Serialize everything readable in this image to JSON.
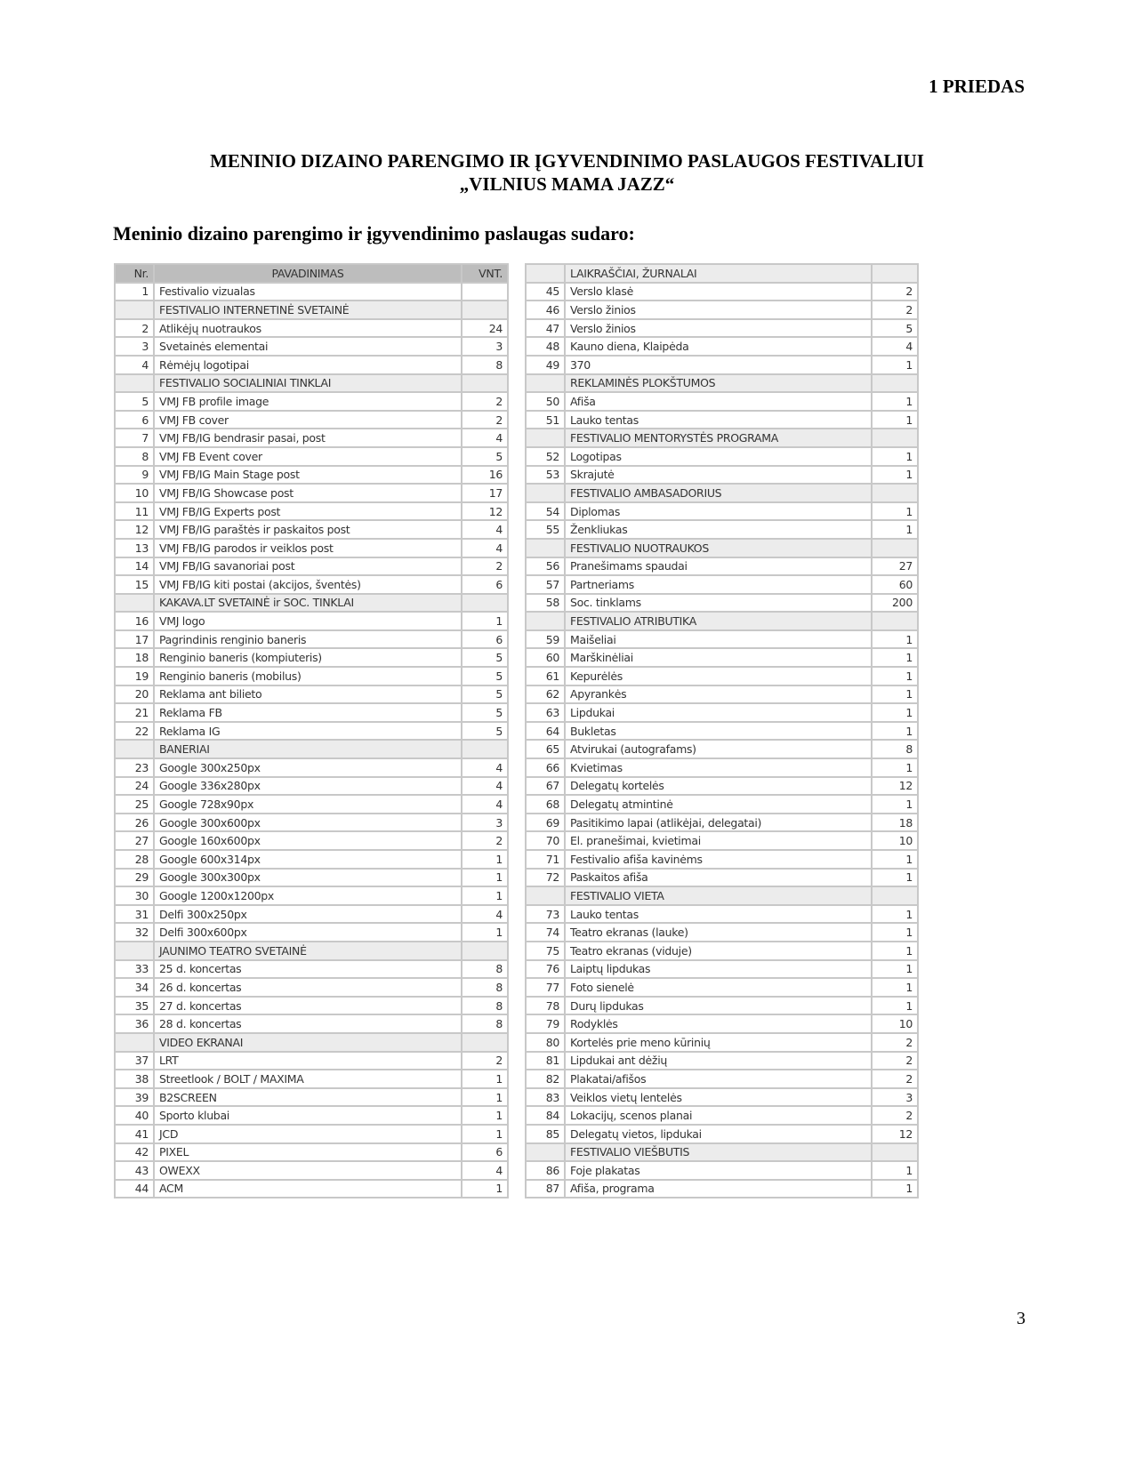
{
  "annex_label": "1 PRIEDAS",
  "title_line1": "MENINIO DIZAINO PARENGIMO IR ĮGYVENDINIMO PASLAUGOS FESTIVALIUI",
  "title_line2": "„VILNIUS MAMA JAZZ“",
  "subtitle": "Meninio dizaino parengimo ir įgyvendinimo paslaugas sudaro:",
  "page_number": "3",
  "colors": {
    "header_bg": "#bdbdbd",
    "section_bg": "#ececec",
    "border": "#c8c8c8"
  },
  "table_left": [
    {
      "type": "head",
      "nr": "Nr.",
      "name": "PAVADINIMAS",
      "vnt": "VNT."
    },
    {
      "nr": "1",
      "name": "Festivalio vizualas",
      "vnt": ""
    },
    {
      "type": "section",
      "nr": "",
      "name": "FESTIVALIO INTERNETINĖ SVETAINĖ",
      "vnt": ""
    },
    {
      "nr": "2",
      "name": "Atlikėjų nuotraukos",
      "vnt": "24"
    },
    {
      "nr": "3",
      "name": "Svetainės elementai",
      "vnt": "3"
    },
    {
      "nr": "4",
      "name": "Rėmėjų logotipai",
      "vnt": "8"
    },
    {
      "type": "section",
      "nr": "",
      "name": "FESTIVALIO SOCIALINIAI TINKLAI",
      "vnt": ""
    },
    {
      "nr": "5",
      "name": "VMJ FB profile image",
      "vnt": "2"
    },
    {
      "nr": "6",
      "name": "VMJ FB cover",
      "vnt": "2"
    },
    {
      "nr": "7",
      "name": "VMJ FB/IG bendrasir pasai, post",
      "vnt": "4"
    },
    {
      "nr": "8",
      "name": "VMJ FB Event cover",
      "vnt": "5"
    },
    {
      "nr": "9",
      "name": "VMJ FB/IG Main Stage post",
      "vnt": "16"
    },
    {
      "nr": "10",
      "name": "VMJ FB/IG Showcase post",
      "vnt": "17"
    },
    {
      "nr": "11",
      "name": "VMJ FB/IG Experts post",
      "vnt": "12"
    },
    {
      "nr": "12",
      "name": "VMJ FB/IG paraštės ir paskaitos post",
      "vnt": "4"
    },
    {
      "nr": "13",
      "name": "VMJ FB/IG parodos ir veiklos post",
      "vnt": "4"
    },
    {
      "nr": "14",
      "name": "VMJ FB/IG savanoriai post",
      "vnt": "2"
    },
    {
      "nr": "15",
      "name": "VMJ FB/IG kiti postai (akcijos, šventės)",
      "vnt": "6"
    },
    {
      "type": "section",
      "nr": "",
      "name": "KAKAVA.LT SVETAINĖ ir SOC. TINKLAI",
      "vnt": ""
    },
    {
      "nr": "16",
      "name": "VMJ logo",
      "vnt": "1"
    },
    {
      "nr": "17",
      "name": "Pagrindinis renginio baneris",
      "vnt": "6"
    },
    {
      "nr": "18",
      "name": "Renginio baneris (kompiuteris)",
      "vnt": "5"
    },
    {
      "nr": "19",
      "name": "Renginio baneris (mobilus)",
      "vnt": "5"
    },
    {
      "nr": "20",
      "name": "Reklama ant bilieto",
      "vnt": "5"
    },
    {
      "nr": "21",
      "name": "Reklama FB",
      "vnt": "5"
    },
    {
      "nr": "22",
      "name": "Reklama IG",
      "vnt": "5"
    },
    {
      "type": "section",
      "nr": "",
      "name": "BANERIAI",
      "vnt": ""
    },
    {
      "nr": "23",
      "name": "Google 300x250px",
      "vnt": "4"
    },
    {
      "nr": "24",
      "name": "Google 336x280px",
      "vnt": "4"
    },
    {
      "nr": "25",
      "name": "Google 728x90px",
      "vnt": "4"
    },
    {
      "nr": "26",
      "name": "Google 300x600px",
      "vnt": "3"
    },
    {
      "nr": "27",
      "name": "Google 160x600px",
      "vnt": "2"
    },
    {
      "nr": "28",
      "name": "Google 600x314px",
      "vnt": "1"
    },
    {
      "nr": "29",
      "name": "Google 300x300px",
      "vnt": "1"
    },
    {
      "nr": "30",
      "name": "Google 1200x1200px",
      "vnt": "1"
    },
    {
      "nr": "31",
      "name": "Delfi 300x250px",
      "vnt": "4"
    },
    {
      "nr": "32",
      "name": "Delfi 300x600px",
      "vnt": "1"
    },
    {
      "type": "section",
      "nr": "",
      "name": "JAUNIMO TEATRO SVETAINĖ",
      "vnt": ""
    },
    {
      "nr": "33",
      "name": "25 d. koncertas",
      "vnt": "8"
    },
    {
      "nr": "34",
      "name": "26 d. koncertas",
      "vnt": "8"
    },
    {
      "nr": "35",
      "name": "27 d. koncertas",
      "vnt": "8"
    },
    {
      "nr": "36",
      "name": "28 d. koncertas",
      "vnt": "8"
    },
    {
      "type": "section",
      "nr": "",
      "name": "VIDEO EKRANAI",
      "vnt": ""
    },
    {
      "nr": "37",
      "name": "LRT",
      "vnt": "2"
    },
    {
      "nr": "38",
      "name": "Streetlook / BOLT / MAXIMA",
      "vnt": "1"
    },
    {
      "nr": "39",
      "name": "B2SCREEN",
      "vnt": "1"
    },
    {
      "nr": "40",
      "name": "Sporto klubai",
      "vnt": "1"
    },
    {
      "nr": "41",
      "name": "JCD",
      "vnt": "1"
    },
    {
      "nr": "42",
      "name": "PIXEL",
      "vnt": "6"
    },
    {
      "nr": "43",
      "name": "OWEXX",
      "vnt": "4"
    },
    {
      "nr": "44",
      "name": "ACM",
      "vnt": "1"
    }
  ],
  "table_right": [
    {
      "type": "section",
      "nr": "",
      "name": "LAIKRAŠČIAI, ŽURNALAI",
      "vnt": ""
    },
    {
      "nr": "45",
      "name": "Verslo klasė",
      "vnt": "2"
    },
    {
      "nr": "46",
      "name": "Verslo žinios",
      "vnt": "2"
    },
    {
      "nr": "47",
      "name": "Verslo žinios",
      "vnt": "5"
    },
    {
      "nr": "48",
      "name": "Kauno diena, Klaipėda",
      "vnt": "4"
    },
    {
      "nr": "49",
      "name": "370",
      "vnt": "1"
    },
    {
      "type": "section",
      "nr": "",
      "name": "REKLAMINĖS PLOKŠTUMOS",
      "vnt": ""
    },
    {
      "nr": "50",
      "name": "Afiša",
      "vnt": "1"
    },
    {
      "nr": "51",
      "name": "Lauko tentas",
      "vnt": "1"
    },
    {
      "type": "section",
      "nr": "",
      "name": "FESTIVALIO MENTORYSTĖS PROGRAMA",
      "vnt": ""
    },
    {
      "nr": "52",
      "name": "Logotipas",
      "vnt": "1"
    },
    {
      "nr": "53",
      "name": "Skrajutė",
      "vnt": "1"
    },
    {
      "type": "section",
      "nr": "",
      "name": "FESTIVALIO AMBASADORIUS",
      "vnt": ""
    },
    {
      "nr": "54",
      "name": "Diplomas",
      "vnt": "1"
    },
    {
      "nr": "55",
      "name": "Ženkliukas",
      "vnt": "1"
    },
    {
      "type": "section",
      "nr": "",
      "name": "FESTIVALIO NUOTRAUKOS",
      "vnt": ""
    },
    {
      "nr": "56",
      "name": "Pranešimams spaudai",
      "vnt": "27"
    },
    {
      "nr": "57",
      "name": "Partneriams",
      "vnt": "60"
    },
    {
      "nr": "58",
      "name": "Soc. tinklams",
      "vnt": "200"
    },
    {
      "type": "section",
      "nr": "",
      "name": "FESTIVALIO ATRIBUTIKA",
      "vnt": ""
    },
    {
      "nr": "59",
      "name": "Maišeliai",
      "vnt": "1"
    },
    {
      "nr": "60",
      "name": "Marškinėliai",
      "vnt": "1"
    },
    {
      "nr": "61",
      "name": "Kepurėlės",
      "vnt": "1"
    },
    {
      "nr": "62",
      "name": "Apyrankės",
      "vnt": "1"
    },
    {
      "nr": "63",
      "name": "Lipdukai",
      "vnt": "1"
    },
    {
      "nr": "64",
      "name": "Bukletas",
      "vnt": "1"
    },
    {
      "nr": "65",
      "name": "Atvirukai (autografams)",
      "vnt": "8"
    },
    {
      "nr": "66",
      "name": "Kvietimas",
      "vnt": "1"
    },
    {
      "nr": "67",
      "name": "Delegatų kortelės",
      "vnt": "12"
    },
    {
      "nr": "68",
      "name": "Delegatų atmintinė",
      "vnt": "1"
    },
    {
      "nr": "69",
      "name": "Pasitikimo lapai (atlikėjai, delegatai)",
      "vnt": "18"
    },
    {
      "nr": "70",
      "name": "El. pranešimai, kvietimai",
      "vnt": "10"
    },
    {
      "nr": "71",
      "name": "Festivalio afiša kavinėms",
      "vnt": "1"
    },
    {
      "nr": "72",
      "name": "Paskaitos afiša",
      "vnt": "1"
    },
    {
      "type": "section",
      "nr": "",
      "name": "FESTIVALIO VIETA",
      "vnt": ""
    },
    {
      "nr": "73",
      "name": "Lauko tentas",
      "vnt": "1"
    },
    {
      "nr": "74",
      "name": "Teatro ekranas (lauke)",
      "vnt": "1"
    },
    {
      "nr": "75",
      "name": "Teatro ekranas (viduje)",
      "vnt": "1"
    },
    {
      "nr": "76",
      "name": "Laiptų lipdukas",
      "vnt": "1"
    },
    {
      "nr": "77",
      "name": "Foto sienelė",
      "vnt": "1"
    },
    {
      "nr": "78",
      "name": "Durų lipdukas",
      "vnt": "1"
    },
    {
      "nr": "79",
      "name": "Rodyklės",
      "vnt": "10"
    },
    {
      "nr": "80",
      "name": "Kortelės prie meno kūrinių",
      "vnt": "2"
    },
    {
      "nr": "81",
      "name": "Lipdukai ant dėžių",
      "vnt": "2"
    },
    {
      "nr": "82",
      "name": "Plakatai/afišos",
      "vnt": "2"
    },
    {
      "nr": "83",
      "name": "Veiklos vietų lentelės",
      "vnt": "3"
    },
    {
      "nr": "84",
      "name": "Lokacijų, scenos planai",
      "vnt": "2"
    },
    {
      "nr": "85",
      "name": "Delegatų vietos, lipdukai",
      "vnt": "12"
    },
    {
      "type": "section",
      "nr": "",
      "name": "FESTIVALIO VIEŠBUTIS",
      "vnt": ""
    },
    {
      "nr": "86",
      "name": "Foje plakatas",
      "vnt": "1"
    },
    {
      "nr": "87",
      "name": "Afiša, programa",
      "vnt": "1"
    }
  ]
}
